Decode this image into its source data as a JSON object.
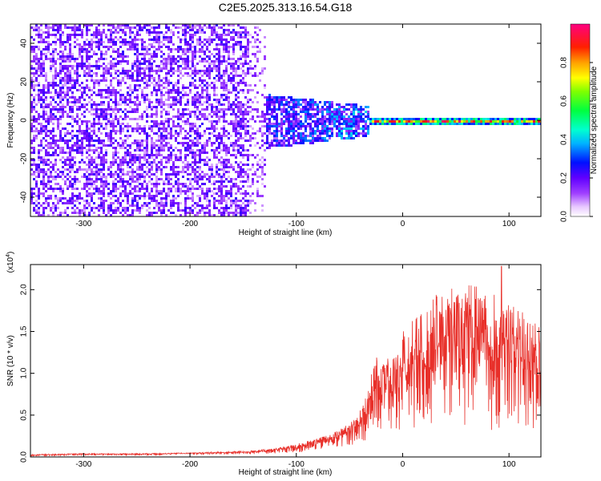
{
  "title": "C2E5.2025.313.16.54.G18",
  "chart_data": [
    {
      "type": "heatmap",
      "xlabel": "Height of straight line (km)",
      "ylabel": "Frequency (Hz)",
      "xlim": [
        -350,
        130
      ],
      "ylim": [
        -50,
        50
      ],
      "xticks": [
        -300,
        -200,
        -100,
        0,
        100
      ],
      "yticks": [
        -40,
        -20,
        0,
        20,
        40
      ],
      "xtick_labels": [
        "-300",
        "-200",
        "-100",
        "0",
        "100"
      ],
      "ytick_labels": [
        "-40",
        "-20",
        "0",
        "20",
        "40"
      ],
      "description_regions": [
        {
          "x_range": [
            -350,
            -135
          ],
          "freq_range": [
            -50,
            50
          ],
          "amplitude": [
            0.0,
            0.2
          ],
          "pattern": "scattered noise"
        },
        {
          "x_range": [
            -130,
            -30
          ],
          "freq_range": [
            -12,
            12
          ],
          "amplitude": [
            0.1,
            0.4
          ],
          "pattern": "noisy converging band"
        },
        {
          "x_range": [
            -30,
            130
          ],
          "freq_range": [
            -1,
            1
          ],
          "amplitude": [
            0.5,
            1.0
          ],
          "pattern": "narrow carrier line at 0 Hz"
        }
      ],
      "colorbar": {
        "label": "Normalized spectral amplitude",
        "range": [
          0.0,
          1.0
        ],
        "ticks": [
          0.0,
          0.2,
          0.4,
          0.6,
          0.8
        ],
        "tick_labels": [
          "0.0",
          "0.2",
          "0.4",
          "0.6",
          "0.8"
        ]
      }
    },
    {
      "type": "line",
      "xlabel": "Height of straight line (km)",
      "ylabel": "SNR (10 * v/v)",
      "scale_note": "(x10",
      "scale_exp": "4",
      "xlim": [
        -350,
        130
      ],
      "ylim": [
        0.0,
        2.3
      ],
      "xticks": [
        -300,
        -200,
        -100,
        0,
        100
      ],
      "yticks": [
        0.0,
        0.5,
        1.0,
        1.5,
        2.0
      ],
      "xtick_labels": [
        "-300",
        "-200",
        "-100",
        "0",
        "100"
      ],
      "ytick_labels": [
        "0.0",
        "0.5",
        "1.0",
        "1.5",
        "2.0"
      ],
      "series": [
        {
          "name": "SNR",
          "color": "#e8302a",
          "x": [
            -350,
            -300,
            -250,
            -200,
            -150,
            -120,
            -100,
            -80,
            -60,
            -45,
            -35,
            -30,
            -25,
            -20,
            -10,
            0,
            10,
            20,
            30,
            40,
            50,
            60,
            70,
            80,
            90,
            100,
            110,
            120,
            130
          ],
          "y": [
            0.02,
            0.03,
            0.03,
            0.04,
            0.05,
            0.07,
            0.1,
            0.15,
            0.22,
            0.3,
            0.45,
            0.6,
            0.75,
            0.7,
            0.7,
            0.85,
            0.95,
            1.0,
            1.05,
            1.1,
            1.15,
            1.2,
            1.15,
            1.1,
            1.1,
            1.05,
            1.0,
            0.95,
            0.9
          ],
          "noise_spread": [
            0.01,
            0.01,
            0.01,
            0.01,
            0.02,
            0.03,
            0.05,
            0.07,
            0.1,
            0.15,
            0.25,
            0.35,
            0.4,
            0.45,
            0.5,
            0.6,
            0.65,
            0.7,
            0.8,
            0.8,
            0.85,
            0.85,
            0.8,
            0.8,
            0.75,
            0.7,
            0.7,
            0.65,
            0.6
          ],
          "peak": {
            "x": 93,
            "y": 2.28
          }
        }
      ]
    }
  ]
}
